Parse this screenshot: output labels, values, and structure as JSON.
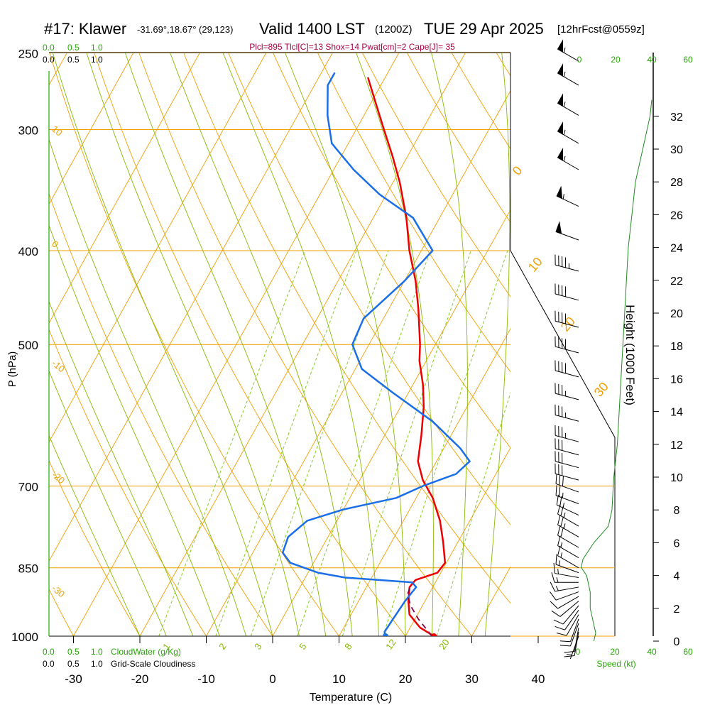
{
  "header": {
    "station": "#17: Klawer",
    "coords": "-31.69°,18.67° (29,123)",
    "valid": "Valid 1400 LST",
    "utc": "(1200Z)",
    "date": "TUE 29 Apr 2025",
    "forecast": "[12hrFcst@0559z]",
    "indices": "Plcl=895 Tlcl[C]=13 Shox=14 Pwat[cm]=2 Cape[J]= 35"
  },
  "colors": {
    "temperature": "#ee0000",
    "dewpoint": "#1a6ee8",
    "parcel": "#880044",
    "isobar": "#f0a000",
    "isotherm": "#f0a000",
    "dry_adiabat": "#f0a000",
    "moist_adiabat": "#88bb00",
    "mixing_ratio": "#88cc22",
    "green_label": "#22aa00",
    "indices": "#aa0044"
  },
  "chart_data": {
    "type": "line",
    "xlabel": "Temperature (C)",
    "ylabel": "P (hPa)",
    "y2label": "Height (1000 Feet)",
    "xlim": [
      -35,
      36
    ],
    "pressure_ticks": [
      "250",
      "300",
      "400",
      "500",
      "700",
      "850",
      "1000"
    ],
    "temperature_ticks": [
      "-30",
      "-20",
      "-10",
      "0",
      "10",
      "20",
      "30",
      "40"
    ],
    "height_ticks": [
      "0",
      "2",
      "4",
      "6",
      "8",
      "10",
      "12",
      "14",
      "16",
      "18",
      "20",
      "22",
      "24",
      "26",
      "28",
      "30",
      "32"
    ],
    "mixing_ratio_labels": [
      "1",
      "2",
      "3",
      "5",
      "8",
      "12",
      "20"
    ],
    "dry_adiabat_labels": [
      "10",
      "0",
      "-10",
      "-20",
      "-30",
      "0",
      "10",
      "20",
      "30"
    ],
    "cloud_scale_top": [
      "0.0",
      "0.5",
      "1.0"
    ],
    "cloud_scale_top_labels": [
      "0.0",
      "0.5",
      "1.0"
    ],
    "cloud_scale_bottom_green": [
      "0.0",
      "0.5",
      "1.0",
      "CloudWater (g/Kg)"
    ],
    "cloud_scale_bottom": [
      "0.0",
      "0.5",
      "1.0",
      "Grid-Scale Cloudiness"
    ],
    "wind_speed_ticks": [
      "0",
      "20",
      "40",
      "60"
    ],
    "wind_speed_label": "Speed (kt)",
    "series": [
      {
        "name": "Temperature",
        "points": [
          {
            "p": 1000,
            "t": 24.3
          },
          {
            "p": 980,
            "t": 21.5
          },
          {
            "p": 950,
            "t": 18.8
          },
          {
            "p": 920,
            "t": 17.5
          },
          {
            "p": 890,
            "t": 16.5
          },
          {
            "p": 875,
            "t": 16.8
          },
          {
            "p": 860,
            "t": 19.5
          },
          {
            "p": 840,
            "t": 19.8
          },
          {
            "p": 800,
            "t": 17.8
          },
          {
            "p": 760,
            "t": 15.5
          },
          {
            "p": 720,
            "t": 12.5
          },
          {
            "p": 690,
            "t": 9.5
          },
          {
            "p": 660,
            "t": 7.2
          },
          {
            "p": 620,
            "t": 5.5
          },
          {
            "p": 580,
            "t": 3.5
          },
          {
            "p": 550,
            "t": 1.5
          },
          {
            "p": 520,
            "t": -1.0
          },
          {
            "p": 500,
            "t": -2.3
          },
          {
            "p": 460,
            "t": -5.5
          },
          {
            "p": 430,
            "t": -8.3
          },
          {
            "p": 400,
            "t": -11.8
          },
          {
            "p": 370,
            "t": -15.0
          },
          {
            "p": 340,
            "t": -19.0
          },
          {
            "p": 320,
            "t": -22.2
          },
          {
            "p": 300,
            "t": -25.8
          },
          {
            "p": 280,
            "t": -29.6
          },
          {
            "p": 265,
            "t": -32.6
          }
        ]
      },
      {
        "name": "Dewpoint",
        "points": [
          {
            "p": 1000,
            "t": 17.0
          },
          {
            "p": 990,
            "t": 16.5
          },
          {
            "p": 960,
            "t": 16.7
          },
          {
            "p": 920,
            "t": 17.0
          },
          {
            "p": 890,
            "t": 17.5
          },
          {
            "p": 880,
            "t": 16.5
          },
          {
            "p": 870,
            "t": 6.0
          },
          {
            "p": 860,
            "t": 1.5
          },
          {
            "p": 840,
            "t": -3.5
          },
          {
            "p": 820,
            "t": -5.5
          },
          {
            "p": 790,
            "t": -6.0
          },
          {
            "p": 760,
            "t": -4.5
          },
          {
            "p": 740,
            "t": 0.0
          },
          {
            "p": 720,
            "t": 7.0
          },
          {
            "p": 700,
            "t": 10.0
          },
          {
            "p": 680,
            "t": 14.0
          },
          {
            "p": 660,
            "t": 15.0
          },
          {
            "p": 640,
            "t": 12.5
          },
          {
            "p": 600,
            "t": 6.0
          },
          {
            "p": 560,
            "t": -2.5
          },
          {
            "p": 530,
            "t": -9.0
          },
          {
            "p": 500,
            "t": -12.5
          },
          {
            "p": 470,
            "t": -13.0
          },
          {
            "p": 430,
            "t": -10.0
          },
          {
            "p": 400,
            "t": -8.3
          },
          {
            "p": 370,
            "t": -14.0
          },
          {
            "p": 350,
            "t": -21.0
          },
          {
            "p": 330,
            "t": -27.0
          },
          {
            "p": 310,
            "t": -32.5
          },
          {
            "p": 290,
            "t": -35.5
          },
          {
            "p": 270,
            "t": -38.0
          },
          {
            "p": 262,
            "t": -38.0
          }
        ]
      },
      {
        "name": "Parcel",
        "dashed": true,
        "points": [
          {
            "p": 1000,
            "t": 24.0
          },
          {
            "p": 960,
            "t": 20.5
          },
          {
            "p": 930,
            "t": 18.2
          },
          {
            "p": 905,
            "t": 16.8
          },
          {
            "p": 890,
            "t": 16.6
          }
        ]
      }
    ],
    "surface": {
      "t": 24.3,
      "td": 17.0
    },
    "winds": [
      {
        "p": 1000,
        "speed": 8,
        "dir": 200
      },
      {
        "p": 990,
        "speed": 10,
        "dir": 190
      },
      {
        "p": 980,
        "speed": 12,
        "dir": 190
      },
      {
        "p": 970,
        "speed": 12,
        "dir": 200
      },
      {
        "p": 960,
        "speed": 12,
        "dir": 200
      },
      {
        "p": 950,
        "speed": 12,
        "dir": 210
      },
      {
        "p": 940,
        "speed": 12,
        "dir": 215
      },
      {
        "p": 930,
        "speed": 12,
        "dir": 220
      },
      {
        "p": 920,
        "speed": 12,
        "dir": 230
      },
      {
        "p": 910,
        "speed": 12,
        "dir": 240
      },
      {
        "p": 900,
        "speed": 12,
        "dir": 250
      },
      {
        "p": 890,
        "speed": 15,
        "dir": 260
      },
      {
        "p": 880,
        "speed": 15,
        "dir": 270
      },
      {
        "p": 870,
        "speed": 15,
        "dir": 280
      },
      {
        "p": 860,
        "speed": 15,
        "dir": 290
      },
      {
        "p": 850,
        "speed": 15,
        "dir": 300
      },
      {
        "p": 830,
        "speed": 15,
        "dir": 300
      },
      {
        "p": 810,
        "speed": 20,
        "dir": 300
      },
      {
        "p": 790,
        "speed": 25,
        "dir": 300
      },
      {
        "p": 770,
        "speed": 25,
        "dir": 300
      },
      {
        "p": 750,
        "speed": 25,
        "dir": 295
      },
      {
        "p": 730,
        "speed": 25,
        "dir": 290
      },
      {
        "p": 710,
        "speed": 30,
        "dir": 290
      },
      {
        "p": 690,
        "speed": 30,
        "dir": 285
      },
      {
        "p": 670,
        "speed": 30,
        "dir": 285
      },
      {
        "p": 650,
        "speed": 30,
        "dir": 285
      },
      {
        "p": 630,
        "speed": 35,
        "dir": 285
      },
      {
        "p": 600,
        "speed": 35,
        "dir": 285
      },
      {
        "p": 570,
        "speed": 35,
        "dir": 285
      },
      {
        "p": 540,
        "speed": 40,
        "dir": 285
      },
      {
        "p": 510,
        "speed": 40,
        "dir": 285
      },
      {
        "p": 480,
        "speed": 40,
        "dir": 285
      },
      {
        "p": 450,
        "speed": 40,
        "dir": 285
      },
      {
        "p": 420,
        "speed": 45,
        "dir": 285
      },
      {
        "p": 390,
        "speed": 50,
        "dir": 290
      },
      {
        "p": 360,
        "speed": 55,
        "dir": 295
      },
      {
        "p": 330,
        "speed": 55,
        "dir": 300
      },
      {
        "p": 310,
        "speed": 55,
        "dir": 300
      },
      {
        "p": 290,
        "speed": 55,
        "dir": 300
      },
      {
        "p": 270,
        "speed": 55,
        "dir": 300
      },
      {
        "p": 255,
        "speed": 55,
        "dir": 300
      }
    ],
    "wind_speed_profile": [
      {
        "h": 0,
        "speed": 8
      },
      {
        "h": 0.5,
        "speed": 9
      },
      {
        "h": 1,
        "speed": 8
      },
      {
        "h": 2,
        "speed": 6
      },
      {
        "h": 3,
        "speed": 6
      },
      {
        "h": 4,
        "speed": 4
      },
      {
        "h": 4.5,
        "speed": 1
      },
      {
        "h": 5,
        "speed": 2
      },
      {
        "h": 6,
        "speed": 8
      },
      {
        "h": 7,
        "speed": 16
      },
      {
        "h": 8,
        "speed": 18
      },
      {
        "h": 10,
        "speed": 19
      },
      {
        "h": 12,
        "speed": 21
      },
      {
        "h": 14,
        "speed": 22
      },
      {
        "h": 16,
        "speed": 23
      },
      {
        "h": 18,
        "speed": 24
      },
      {
        "h": 20,
        "speed": 25
      },
      {
        "h": 22,
        "speed": 26
      },
      {
        "h": 24,
        "speed": 27
      },
      {
        "h": 26,
        "speed": 29
      },
      {
        "h": 28,
        "speed": 31
      },
      {
        "h": 30,
        "speed": 35
      },
      {
        "h": 32,
        "speed": 39
      },
      {
        "h": 33,
        "speed": 40
      }
    ]
  }
}
